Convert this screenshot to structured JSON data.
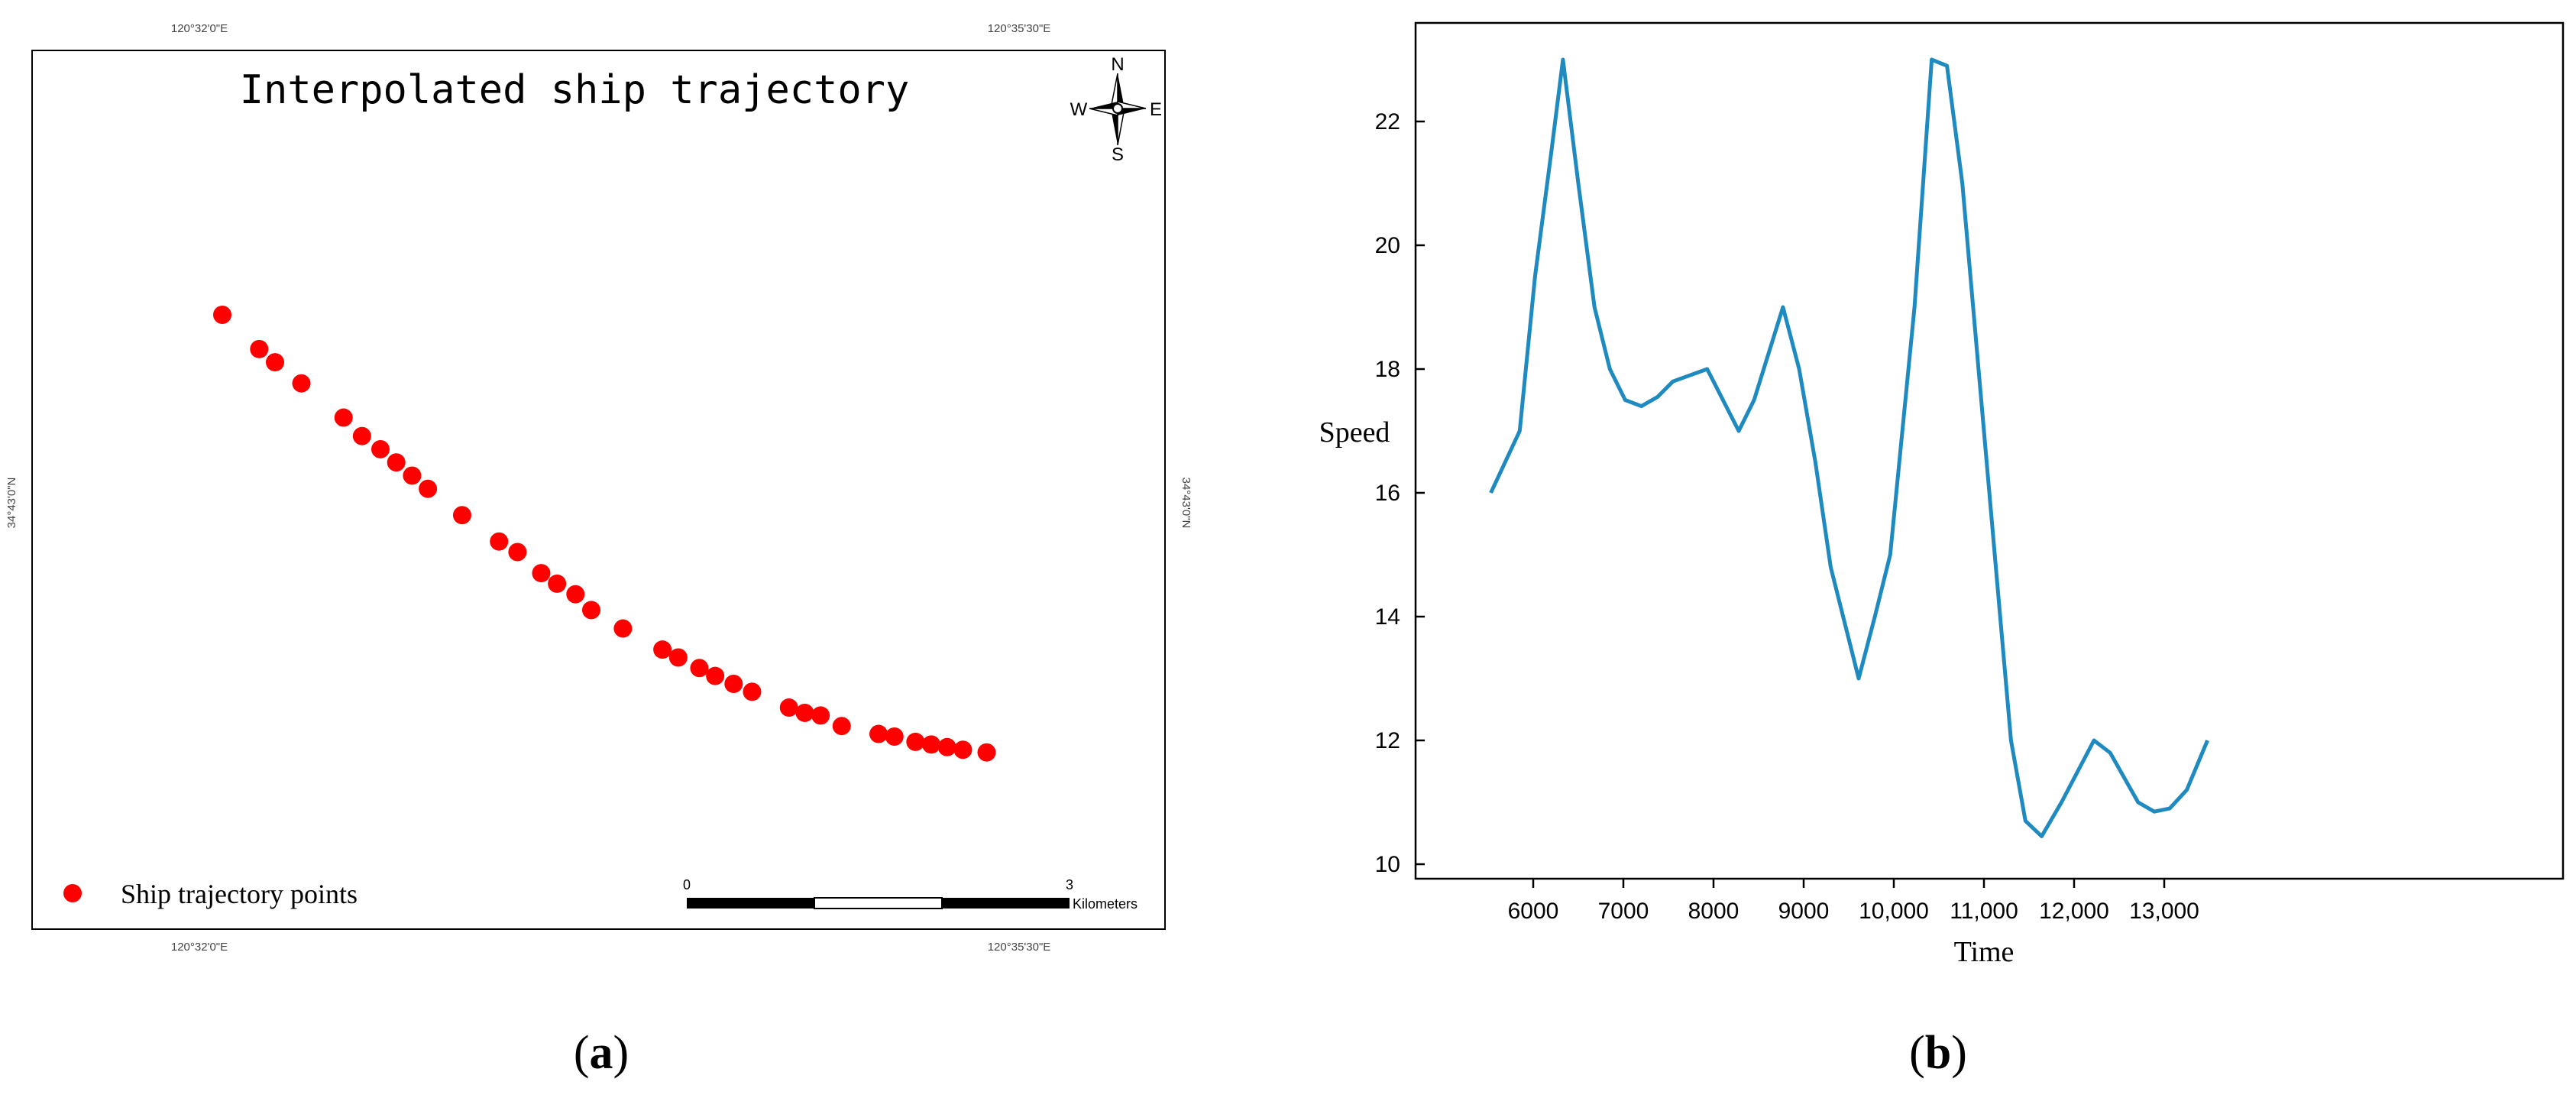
{
  "panel_a": {
    "label_open": "(",
    "label_letter": "a",
    "label_close": ")",
    "title": "Interpolated ship trajectory",
    "coords": {
      "top_left": "120°32'0\"E",
      "top_right": "120°35'30\"E",
      "bottom_left": "120°32'0\"E",
      "bottom_right": "120°35'30\"E",
      "left": "34°43'0\"N",
      "right": "34°43'0\"N"
    },
    "compass": {
      "n": "N",
      "s": "S",
      "e": "E",
      "w": "W"
    },
    "legend_label": "Ship trajectory points",
    "point_color": "#ff0000",
    "scalebar": {
      "start": "0",
      "end": "3",
      "unit": "Kilometers"
    }
  },
  "panel_b": {
    "label_open": "(",
    "label_letter": "b",
    "label_close": ")",
    "line_color": "#1f8ac0"
  },
  "chart_data": [
    {
      "type": "scatter",
      "title": "Interpolated ship trajectory",
      "series": [
        {
          "name": "Ship trajectory points",
          "x": [
            0,
            0.7,
            1.0,
            1.5,
            2.3,
            2.65,
            3.0,
            3.3,
            3.6,
            3.9,
            4.55,
            5.25,
            5.6,
            6.05,
            6.35,
            6.7,
            7.0,
            7.6,
            8.35,
            8.65,
            9.05,
            9.35,
            9.7,
            10.05,
            10.75,
            11.05,
            11.35,
            11.75,
            12.45,
            12.75,
            13.15,
            13.45,
            13.75,
            14.05,
            14.5
          ],
          "y": [
            0,
            -0.65,
            -0.9,
            -1.3,
            -1.95,
            -2.3,
            -2.55,
            -2.8,
            -3.05,
            -3.3,
            -3.8,
            -4.3,
            -4.5,
            -4.9,
            -5.1,
            -5.3,
            -5.6,
            -5.95,
            -6.35,
            -6.5,
            -6.7,
            -6.85,
            -7.0,
            -7.15,
            -7.45,
            -7.55,
            -7.6,
            -7.8,
            -7.95,
            -8.0,
            -8.1,
            -8.15,
            -8.2,
            -8.25,
            -8.3
          ]
        }
      ]
    },
    {
      "type": "line",
      "xlabel": "Time",
      "ylabel": "Speed",
      "xlim": [
        5500,
        13500
      ],
      "ylim": [
        10,
        23
      ],
      "xticks": [
        6000,
        7000,
        8000,
        9000,
        10000,
        11000,
        12000,
        13000
      ],
      "xtick_labels": [
        "6000",
        "7000",
        "8000",
        "9000",
        "10,000",
        "11,000",
        "12,000",
        "13,000"
      ],
      "yticks": [
        10,
        12,
        14,
        16,
        18,
        20,
        22
      ],
      "ytick_labels": [
        "10",
        "12",
        "14",
        "16",
        "18",
        "20",
        "22"
      ],
      "series": [
        {
          "x": [
            5530,
            5850,
            6020,
            6200,
            6330,
            6500,
            6680,
            6850,
            7020,
            7200,
            7380,
            7550,
            7930,
            8280,
            8450,
            8770,
            8950,
            9130,
            9300,
            9610,
            9790,
            9960,
            10230,
            10420,
            10590,
            10760,
            10940,
            11300,
            11460,
            11640,
            11860,
            12220,
            12400,
            12710,
            12890,
            13060,
            13250,
            13480
          ],
          "y": [
            16.0,
            17.0,
            19.5,
            21.5,
            23.0,
            21.0,
            19.0,
            18.0,
            17.5,
            17.4,
            17.55,
            17.8,
            18.0,
            17.0,
            17.5,
            19.0,
            18.0,
            16.5,
            14.8,
            13.0,
            14.0,
            15.0,
            19.0,
            23.0,
            22.9,
            21.0,
            18.0,
            12.0,
            10.7,
            10.45,
            11.0,
            12.0,
            11.8,
            11.0,
            10.85,
            10.9,
            11.2,
            12.0
          ]
        }
      ]
    }
  ]
}
